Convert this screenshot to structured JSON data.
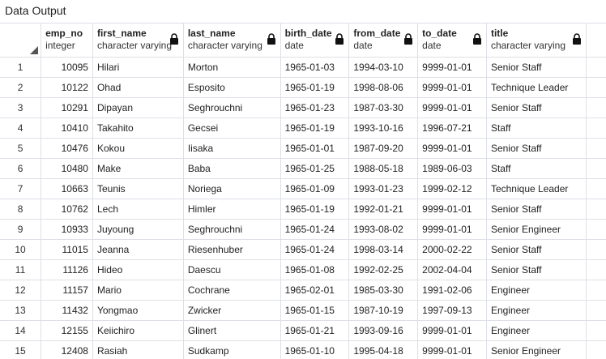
{
  "panel": {
    "title": "Data Output"
  },
  "columns": [
    {
      "name": "emp_no",
      "type": "integer"
    },
    {
      "name": "first_name",
      "type": "character varying"
    },
    {
      "name": "last_name",
      "type": "character varying"
    },
    {
      "name": "birth_date",
      "type": "date"
    },
    {
      "name": "from_date",
      "type": "date"
    },
    {
      "name": "to_date",
      "type": "date"
    },
    {
      "name": "title",
      "type": "character varying"
    }
  ],
  "rows": [
    {
      "n": "1",
      "cells": [
        "10095",
        "Hilari",
        "Morton",
        "1965-01-03",
        "1994-03-10",
        "9999-01-01",
        "Senior Staff"
      ]
    },
    {
      "n": "2",
      "cells": [
        "10122",
        "Ohad",
        "Esposito",
        "1965-01-19",
        "1998-08-06",
        "9999-01-01",
        "Technique Leader"
      ]
    },
    {
      "n": "3",
      "cells": [
        "10291",
        "Dipayan",
        "Seghrouchni",
        "1965-01-23",
        "1987-03-30",
        "9999-01-01",
        "Senior Staff"
      ]
    },
    {
      "n": "4",
      "cells": [
        "10410",
        "Takahito",
        "Gecsei",
        "1965-01-19",
        "1993-10-16",
        "1996-07-21",
        "Staff"
      ]
    },
    {
      "n": "5",
      "cells": [
        "10476",
        "Kokou",
        "Iisaka",
        "1965-01-01",
        "1987-09-20",
        "9999-01-01",
        "Senior Staff"
      ]
    },
    {
      "n": "6",
      "cells": [
        "10480",
        "Make",
        "Baba",
        "1965-01-25",
        "1988-05-18",
        "1989-06-03",
        "Staff"
      ]
    },
    {
      "n": "7",
      "cells": [
        "10663",
        "Teunis",
        "Noriega",
        "1965-01-09",
        "1993-01-23",
        "1999-02-12",
        "Technique Leader"
      ]
    },
    {
      "n": "8",
      "cells": [
        "10762",
        "Lech",
        "Himler",
        "1965-01-19",
        "1992-01-21",
        "9999-01-01",
        "Senior Staff"
      ]
    },
    {
      "n": "9",
      "cells": [
        "10933",
        "Juyoung",
        "Seghrouchni",
        "1965-01-24",
        "1993-08-02",
        "9999-01-01",
        "Senior Engineer"
      ]
    },
    {
      "n": "10",
      "cells": [
        "11015",
        "Jeanna",
        "Riesenhuber",
        "1965-01-24",
        "1998-03-14",
        "2000-02-22",
        "Senior Staff"
      ]
    },
    {
      "n": "11",
      "cells": [
        "11126",
        "Hideo",
        "Daescu",
        "1965-01-08",
        "1992-02-25",
        "2002-04-04",
        "Senior Staff"
      ]
    },
    {
      "n": "12",
      "cells": [
        "11157",
        "Mario",
        "Cochrane",
        "1965-02-01",
        "1985-03-30",
        "1991-02-06",
        "Engineer"
      ]
    },
    {
      "n": "13",
      "cells": [
        "11432",
        "Yongmao",
        "Zwicker",
        "1965-01-15",
        "1987-10-19",
        "1997-09-13",
        "Engineer"
      ]
    },
    {
      "n": "14",
      "cells": [
        "12155",
        "Keiichiro",
        "Glinert",
        "1965-01-21",
        "1993-09-16",
        "9999-01-01",
        "Engineer"
      ]
    },
    {
      "n": "15",
      "cells": [
        "12408",
        "Rasiah",
        "Sudkamp",
        "1965-01-10",
        "1995-04-18",
        "9999-01-01",
        "Senior Engineer"
      ]
    }
  ],
  "icons": {
    "lock": "lock-icon",
    "corner": "select-all-corner-icon"
  }
}
